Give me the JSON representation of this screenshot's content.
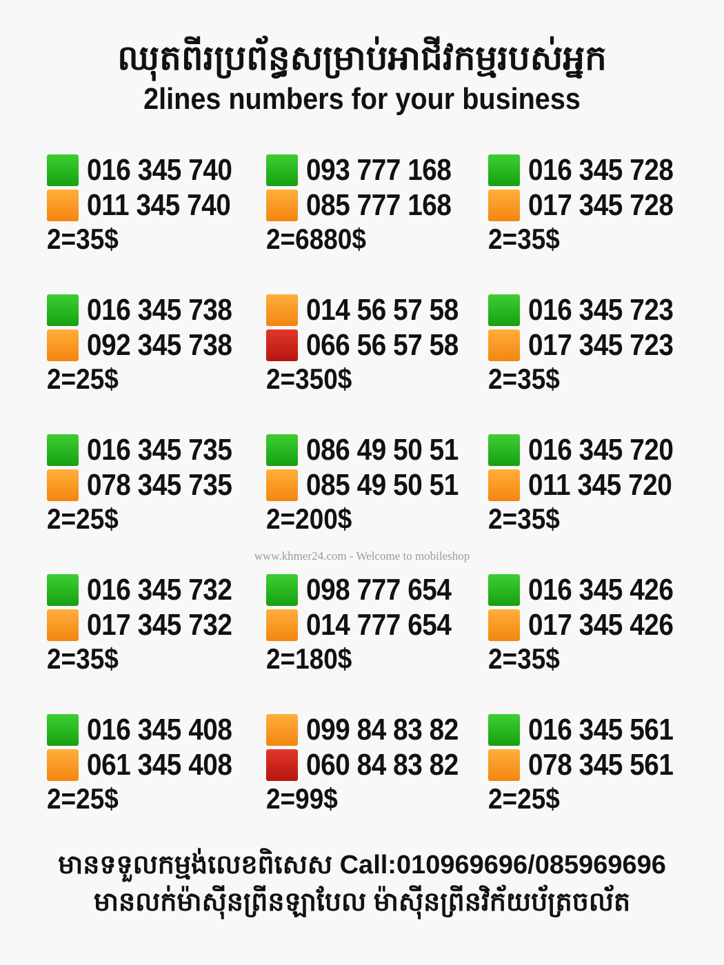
{
  "header": {
    "title_khmer": "ឈុតពីរប្រព័ន្ធសម្រាប់អាជីវកម្មរបស់អ្នក",
    "title_english": "2lines numbers for your business"
  },
  "colors": {
    "green": "#22b51c",
    "orange": "#f7931e",
    "red": "#c8201a"
  },
  "cards": [
    {
      "lines": [
        {
          "color": "green",
          "number": "016 345 740"
        },
        {
          "color": "orange",
          "number": "011 345 740"
        }
      ],
      "price": "2=35$"
    },
    {
      "lines": [
        {
          "color": "green",
          "number": "093 777 168"
        },
        {
          "color": "orange",
          "number": "085 777 168"
        }
      ],
      "price": "2=6880$"
    },
    {
      "lines": [
        {
          "color": "green",
          "number": "016 345 728"
        },
        {
          "color": "orange",
          "number": "017 345 728"
        }
      ],
      "price": "2=35$"
    },
    {
      "lines": [
        {
          "color": "green",
          "number": "016 345 738"
        },
        {
          "color": "orange",
          "number": "092 345 738"
        }
      ],
      "price": "2=25$"
    },
    {
      "lines": [
        {
          "color": "orange",
          "number": "014 56 57 58"
        },
        {
          "color": "red",
          "number": "066 56 57 58"
        }
      ],
      "price": "2=350$"
    },
    {
      "lines": [
        {
          "color": "green",
          "number": "016 345 723"
        },
        {
          "color": "orange",
          "number": "017 345 723"
        }
      ],
      "price": "2=35$"
    },
    {
      "lines": [
        {
          "color": "green",
          "number": "016 345 735"
        },
        {
          "color": "orange",
          "number": "078 345 735"
        }
      ],
      "price": "2=25$"
    },
    {
      "lines": [
        {
          "color": "green",
          "number": "086 49 50 51"
        },
        {
          "color": "orange",
          "number": "085 49 50 51"
        }
      ],
      "price": "2=200$"
    },
    {
      "lines": [
        {
          "color": "green",
          "number": "016 345 720"
        },
        {
          "color": "orange",
          "number": "011 345 720"
        }
      ],
      "price": "2=35$"
    },
    {
      "lines": [
        {
          "color": "green",
          "number": "016 345 732"
        },
        {
          "color": "orange",
          "number": "017 345 732"
        }
      ],
      "price": "2=35$"
    },
    {
      "lines": [
        {
          "color": "green",
          "number": "098 777 654"
        },
        {
          "color": "orange",
          "number": "014 777 654"
        }
      ],
      "price": "2=180$"
    },
    {
      "lines": [
        {
          "color": "green",
          "number": "016 345 426"
        },
        {
          "color": "orange",
          "number": "017 345 426"
        }
      ],
      "price": "2=35$"
    },
    {
      "lines": [
        {
          "color": "green",
          "number": "016 345 408"
        },
        {
          "color": "orange",
          "number": "061 345 408"
        }
      ],
      "price": "2=25$"
    },
    {
      "lines": [
        {
          "color": "orange",
          "number": "099 84 83 82"
        },
        {
          "color": "red",
          "number": "060 84 83 82"
        }
      ],
      "price": "2=99$"
    },
    {
      "lines": [
        {
          "color": "green",
          "number": "016 345 561"
        },
        {
          "color": "orange",
          "number": "078 345 561"
        }
      ],
      "price": "2=25$"
    }
  ],
  "watermark": "www.khmer24.com - Welcome to mobileshop",
  "footer": {
    "line1": "មានទទួលកម្មង់លេខពិសេស Call:010969696/085969696",
    "line2": "មានលក់ម៉ាស៊ីនព្រីនឡាបែល ម៉ាស៊ីនព្រីនវិក័យប័ត្រចល័ត"
  }
}
